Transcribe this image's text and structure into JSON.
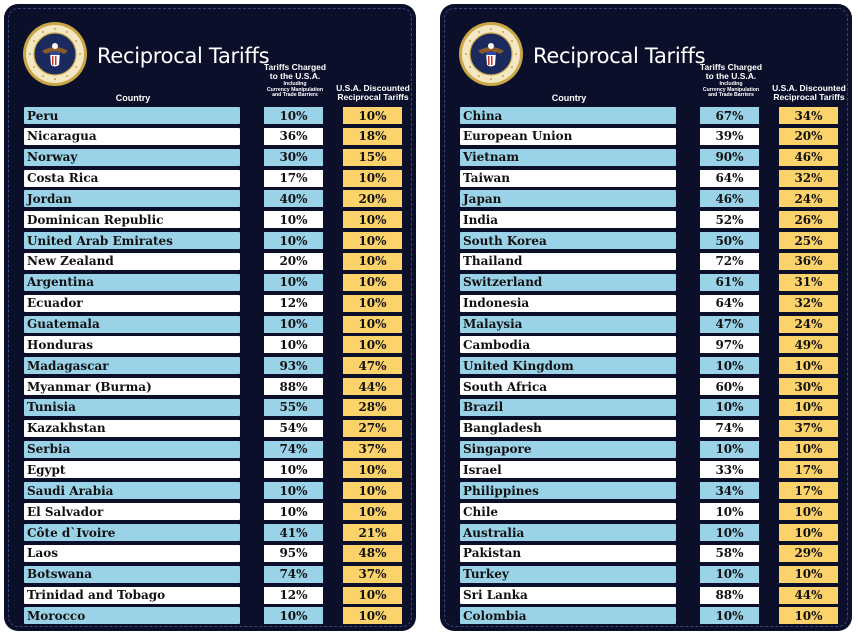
{
  "colors": {
    "board_bg": "#0b0f2a",
    "row_blue": "#9ad2e8",
    "row_white": "#ffffff",
    "reciprocal_bg": "#fcd36a",
    "text": "#111111"
  },
  "icons": {
    "seal": "presidential-seal-icon"
  },
  "headers": {
    "title": "Reciprocal Tariffs",
    "country": "Country",
    "charged_line1": "Tariffs Charged",
    "charged_line2": "to the U.S.A.",
    "charged_sub1": "Including",
    "charged_sub2": "Currency Manipulation",
    "charged_sub3": "and Trade Barriers",
    "recip_line1": "U.S.A. Discounted",
    "recip_line2": "Reciprocal Tariffs"
  },
  "chart_data": [
    {
      "type": "table",
      "title": "Reciprocal Tariffs",
      "columns": [
        "Country",
        "Tariffs Charged to the U.S.A. Including Currency Manipulation and Trade Barriers",
        "U.S.A. Discounted Reciprocal Tariffs"
      ],
      "rows": [
        [
          "Peru",
          "10%",
          "10%"
        ],
        [
          "Nicaragua",
          "36%",
          "18%"
        ],
        [
          "Norway",
          "30%",
          "15%"
        ],
        [
          "Costa Rica",
          "17%",
          "10%"
        ],
        [
          "Jordan",
          "40%",
          "20%"
        ],
        [
          "Dominican Republic",
          "10%",
          "10%"
        ],
        [
          "United Arab Emirates",
          "10%",
          "10%"
        ],
        [
          "New Zealand",
          "20%",
          "10%"
        ],
        [
          "Argentina",
          "10%",
          "10%"
        ],
        [
          "Ecuador",
          "12%",
          "10%"
        ],
        [
          "Guatemala",
          "10%",
          "10%"
        ],
        [
          "Honduras",
          "10%",
          "10%"
        ],
        [
          "Madagascar",
          "93%",
          "47%"
        ],
        [
          "Myanmar (Burma)",
          "88%",
          "44%"
        ],
        [
          "Tunisia",
          "55%",
          "28%"
        ],
        [
          "Kazakhstan",
          "54%",
          "27%"
        ],
        [
          "Serbia",
          "74%",
          "37%"
        ],
        [
          "Egypt",
          "10%",
          "10%"
        ],
        [
          "Saudi Arabia",
          "10%",
          "10%"
        ],
        [
          "El Salvador",
          "10%",
          "10%"
        ],
        [
          "Côte d`Ivoire",
          "41%",
          "21%"
        ],
        [
          "Laos",
          "95%",
          "48%"
        ],
        [
          "Botswana",
          "74%",
          "37%"
        ],
        [
          "Trinidad and Tobago",
          "12%",
          "10%"
        ],
        [
          "Morocco",
          "10%",
          "10%"
        ]
      ]
    },
    {
      "type": "table",
      "title": "Reciprocal Tariffs",
      "columns": [
        "Country",
        "Tariffs Charged to the U.S.A. Including Currency Manipulation and Trade Barriers",
        "U.S.A. Discounted Reciprocal Tariffs"
      ],
      "rows": [
        [
          "China",
          "67%",
          "34%"
        ],
        [
          "European Union",
          "39%",
          "20%"
        ],
        [
          "Vietnam",
          "90%",
          "46%"
        ],
        [
          "Taiwan",
          "64%",
          "32%"
        ],
        [
          "Japan",
          "46%",
          "24%"
        ],
        [
          "India",
          "52%",
          "26%"
        ],
        [
          "South Korea",
          "50%",
          "25%"
        ],
        [
          "Thailand",
          "72%",
          "36%"
        ],
        [
          "Switzerland",
          "61%",
          "31%"
        ],
        [
          "Indonesia",
          "64%",
          "32%"
        ],
        [
          "Malaysia",
          "47%",
          "24%"
        ],
        [
          "Cambodia",
          "97%",
          "49%"
        ],
        [
          "United Kingdom",
          "10%",
          "10%"
        ],
        [
          "South Africa",
          "60%",
          "30%"
        ],
        [
          "Brazil",
          "10%",
          "10%"
        ],
        [
          "Bangladesh",
          "74%",
          "37%"
        ],
        [
          "Singapore",
          "10%",
          "10%"
        ],
        [
          "Israel",
          "33%",
          "17%"
        ],
        [
          "Philippines",
          "34%",
          "17%"
        ],
        [
          "Chile",
          "10%",
          "10%"
        ],
        [
          "Australia",
          "10%",
          "10%"
        ],
        [
          "Pakistan",
          "58%",
          "29%"
        ],
        [
          "Turkey",
          "10%",
          "10%"
        ],
        [
          "Sri Lanka",
          "88%",
          "44%"
        ],
        [
          "Colombia",
          "10%",
          "10%"
        ]
      ]
    }
  ]
}
